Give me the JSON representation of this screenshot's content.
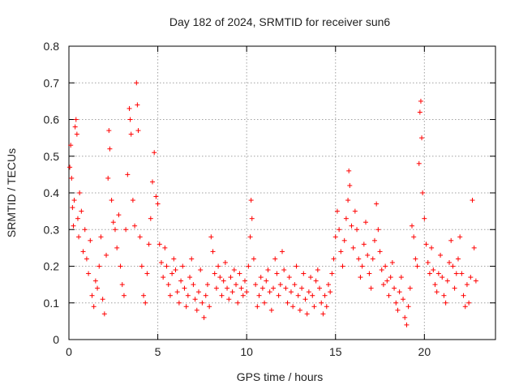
{
  "chart_data": {
    "type": "scatter",
    "title": "Day 182 of 2024, SRMTID for receiver sun6",
    "xlabel": "GPS time / hours",
    "ylabel": "SRMTID / TECUs",
    "xlim": [
      0,
      24
    ],
    "ylim": [
      0,
      0.8
    ],
    "x_ticks": [
      0,
      5,
      10,
      15,
      20
    ],
    "x_tick_labels": [
      "0",
      "5",
      "10",
      "15",
      "20"
    ],
    "y_ticks": [
      0,
      0.1,
      0.2,
      0.3,
      0.4,
      0.5,
      0.6,
      0.7,
      0.8
    ],
    "y_tick_labels": [
      "0",
      "0.1",
      "0.2",
      "0.3",
      "0.4",
      "0.5",
      "0.6",
      "0.7",
      "0.8"
    ],
    "grid": true,
    "marker": "+",
    "marker_color": "#ff0000",
    "series": [
      {
        "name": "SRMTID",
        "points": [
          [
            0.05,
            0.47
          ],
          [
            0.1,
            0.53
          ],
          [
            0.15,
            0.44
          ],
          [
            0.2,
            0.36
          ],
          [
            0.25,
            0.31
          ],
          [
            0.3,
            0.38
          ],
          [
            0.35,
            0.58
          ],
          [
            0.4,
            0.6
          ],
          [
            0.45,
            0.56
          ],
          [
            0.5,
            0.33
          ],
          [
            0.55,
            0.28
          ],
          [
            0.6,
            0.4
          ],
          [
            0.7,
            0.35
          ],
          [
            0.8,
            0.24
          ],
          [
            0.9,
            0.3
          ],
          [
            1.0,
            0.22
          ],
          [
            1.1,
            0.18
          ],
          [
            1.2,
            0.27
          ],
          [
            1.3,
            0.12
          ],
          [
            1.4,
            0.09
          ],
          [
            1.5,
            0.16
          ],
          [
            1.6,
            0.14
          ],
          [
            1.7,
            0.2
          ],
          [
            1.8,
            0.28
          ],
          [
            1.9,
            0.11
          ],
          [
            2.0,
            0.07
          ],
          [
            2.1,
            0.23
          ],
          [
            2.2,
            0.44
          ],
          [
            2.25,
            0.57
          ],
          [
            2.3,
            0.52
          ],
          [
            2.4,
            0.38
          ],
          [
            2.5,
            0.32
          ],
          [
            2.6,
            0.3
          ],
          [
            2.7,
            0.25
          ],
          [
            2.8,
            0.34
          ],
          [
            2.9,
            0.2
          ],
          [
            3.0,
            0.15
          ],
          [
            3.1,
            0.12
          ],
          [
            3.2,
            0.3
          ],
          [
            3.3,
            0.45
          ],
          [
            3.4,
            0.63
          ],
          [
            3.45,
            0.6
          ],
          [
            3.5,
            0.56
          ],
          [
            3.6,
            0.38
          ],
          [
            3.7,
            0.31
          ],
          [
            3.8,
            0.7
          ],
          [
            3.85,
            0.64
          ],
          [
            3.9,
            0.57
          ],
          [
            4.0,
            0.28
          ],
          [
            4.1,
            0.2
          ],
          [
            4.2,
            0.12
          ],
          [
            4.3,
            0.1
          ],
          [
            4.4,
            0.18
          ],
          [
            4.5,
            0.26
          ],
          [
            4.6,
            0.33
          ],
          [
            4.7,
            0.43
          ],
          [
            4.8,
            0.51
          ],
          [
            4.9,
            0.39
          ],
          [
            5.0,
            0.37
          ],
          [
            5.1,
            0.26
          ],
          [
            5.2,
            0.21
          ],
          [
            5.3,
            0.17
          ],
          [
            5.4,
            0.25
          ],
          [
            5.5,
            0.2
          ],
          [
            5.6,
            0.15
          ],
          [
            5.7,
            0.12
          ],
          [
            5.8,
            0.18
          ],
          [
            5.9,
            0.22
          ],
          [
            6.0,
            0.19
          ],
          [
            6.1,
            0.13
          ],
          [
            6.2,
            0.1
          ],
          [
            6.3,
            0.16
          ],
          [
            6.4,
            0.2
          ],
          [
            6.5,
            0.14
          ],
          [
            6.6,
            0.09
          ],
          [
            6.7,
            0.12
          ],
          [
            6.8,
            0.17
          ],
          [
            6.9,
            0.22
          ],
          [
            7.0,
            0.15
          ],
          [
            7.1,
            0.11
          ],
          [
            7.2,
            0.08
          ],
          [
            7.3,
            0.13
          ],
          [
            7.4,
            0.19
          ],
          [
            7.5,
            0.1
          ],
          [
            7.6,
            0.06
          ],
          [
            7.7,
            0.12
          ],
          [
            7.8,
            0.15
          ],
          [
            7.9,
            0.09
          ],
          [
            8.0,
            0.28
          ],
          [
            8.1,
            0.24
          ],
          [
            8.2,
            0.18
          ],
          [
            8.3,
            0.14
          ],
          [
            8.4,
            0.2
          ],
          [
            8.5,
            0.17
          ],
          [
            8.6,
            0.12
          ],
          [
            8.7,
            0.16
          ],
          [
            8.8,
            0.21
          ],
          [
            8.9,
            0.14
          ],
          [
            9.0,
            0.11
          ],
          [
            9.1,
            0.17
          ],
          [
            9.2,
            0.13
          ],
          [
            9.3,
            0.19
          ],
          [
            9.4,
            0.15
          ],
          [
            9.5,
            0.1
          ],
          [
            9.6,
            0.18
          ],
          [
            9.7,
            0.14
          ],
          [
            9.8,
            0.12
          ],
          [
            9.9,
            0.16
          ],
          [
            10.0,
            0.13
          ],
          [
            10.1,
            0.2
          ],
          [
            10.2,
            0.28
          ],
          [
            10.25,
            0.38
          ],
          [
            10.3,
            0.33
          ],
          [
            10.4,
            0.22
          ],
          [
            10.5,
            0.15
          ],
          [
            10.6,
            0.09
          ],
          [
            10.7,
            0.12
          ],
          [
            10.8,
            0.17
          ],
          [
            10.9,
            0.14
          ],
          [
            11.0,
            0.1
          ],
          [
            11.1,
            0.16
          ],
          [
            11.2,
            0.19
          ],
          [
            11.3,
            0.13
          ],
          [
            11.4,
            0.08
          ],
          [
            11.5,
            0.14
          ],
          [
            11.6,
            0.22
          ],
          [
            11.7,
            0.18
          ],
          [
            11.8,
            0.12
          ],
          [
            11.9,
            0.15
          ],
          [
            12.0,
            0.24
          ],
          [
            12.1,
            0.19
          ],
          [
            12.2,
            0.14
          ],
          [
            12.3,
            0.1
          ],
          [
            12.4,
            0.17
          ],
          [
            12.5,
            0.13
          ],
          [
            12.6,
            0.09
          ],
          [
            12.7,
            0.15
          ],
          [
            12.8,
            0.2
          ],
          [
            12.9,
            0.12
          ],
          [
            13.0,
            0.08
          ],
          [
            13.1,
            0.14
          ],
          [
            13.2,
            0.18
          ],
          [
            13.3,
            0.11
          ],
          [
            13.4,
            0.07
          ],
          [
            13.5,
            0.13
          ],
          [
            13.6,
            0.17
          ],
          [
            13.7,
            0.12
          ],
          [
            13.8,
            0.09
          ],
          [
            13.9,
            0.16
          ],
          [
            14.0,
            0.19
          ],
          [
            14.1,
            0.14
          ],
          [
            14.2,
            0.1
          ],
          [
            14.3,
            0.07
          ],
          [
            14.4,
            0.12
          ],
          [
            14.5,
            0.09
          ],
          [
            14.6,
            0.15
          ],
          [
            14.7,
            0.13
          ],
          [
            14.8,
            0.18
          ],
          [
            14.9,
            0.22
          ],
          [
            15.0,
            0.28
          ],
          [
            15.1,
            0.35
          ],
          [
            15.2,
            0.3
          ],
          [
            15.3,
            0.24
          ],
          [
            15.4,
            0.2
          ],
          [
            15.5,
            0.27
          ],
          [
            15.6,
            0.33
          ],
          [
            15.7,
            0.38
          ],
          [
            15.75,
            0.46
          ],
          [
            15.8,
            0.42
          ],
          [
            15.9,
            0.31
          ],
          [
            16.0,
            0.25
          ],
          [
            16.1,
            0.35
          ],
          [
            16.2,
            0.3
          ],
          [
            16.3,
            0.22
          ],
          [
            16.4,
            0.17
          ],
          [
            16.5,
            0.2
          ],
          [
            16.6,
            0.26
          ],
          [
            16.7,
            0.32
          ],
          [
            16.8,
            0.23
          ],
          [
            16.9,
            0.18
          ],
          [
            17.0,
            0.14
          ],
          [
            17.1,
            0.22
          ],
          [
            17.2,
            0.27
          ],
          [
            17.3,
            0.37
          ],
          [
            17.4,
            0.3
          ],
          [
            17.5,
            0.24
          ],
          [
            17.6,
            0.19
          ],
          [
            17.7,
            0.15
          ],
          [
            17.8,
            0.2
          ],
          [
            17.9,
            0.16
          ],
          [
            18.0,
            0.12
          ],
          [
            18.1,
            0.17
          ],
          [
            18.2,
            0.21
          ],
          [
            18.3,
            0.14
          ],
          [
            18.4,
            0.1
          ],
          [
            18.5,
            0.08
          ],
          [
            18.6,
            0.13
          ],
          [
            18.7,
            0.17
          ],
          [
            18.8,
            0.11
          ],
          [
            18.9,
            0.06
          ],
          [
            19.0,
            0.04
          ],
          [
            19.1,
            0.09
          ],
          [
            19.2,
            0.14
          ],
          [
            19.3,
            0.31
          ],
          [
            19.4,
            0.28
          ],
          [
            19.5,
            0.22
          ],
          [
            19.6,
            0.2
          ],
          [
            19.7,
            0.48
          ],
          [
            19.75,
            0.62
          ],
          [
            19.8,
            0.65
          ],
          [
            19.85,
            0.55
          ],
          [
            19.9,
            0.4
          ],
          [
            20.0,
            0.33
          ],
          [
            20.1,
            0.26
          ],
          [
            20.2,
            0.21
          ],
          [
            20.3,
            0.18
          ],
          [
            20.4,
            0.25
          ],
          [
            20.5,
            0.19
          ],
          [
            20.6,
            0.15
          ],
          [
            20.7,
            0.13
          ],
          [
            20.8,
            0.18
          ],
          [
            20.9,
            0.23
          ],
          [
            21.0,
            0.17
          ],
          [
            21.1,
            0.12
          ],
          [
            21.2,
            0.1
          ],
          [
            21.3,
            0.16
          ],
          [
            21.4,
            0.21
          ],
          [
            21.5,
            0.27
          ],
          [
            21.6,
            0.2
          ],
          [
            21.7,
            0.14
          ],
          [
            21.8,
            0.18
          ],
          [
            21.9,
            0.22
          ],
          [
            22.0,
            0.28
          ],
          [
            22.1,
            0.18
          ],
          [
            22.2,
            0.12
          ],
          [
            22.3,
            0.09
          ],
          [
            22.4,
            0.15
          ],
          [
            22.5,
            0.1
          ],
          [
            22.6,
            0.17
          ],
          [
            22.7,
            0.38
          ],
          [
            22.8,
            0.25
          ],
          [
            22.9,
            0.16
          ]
        ]
      }
    ]
  }
}
